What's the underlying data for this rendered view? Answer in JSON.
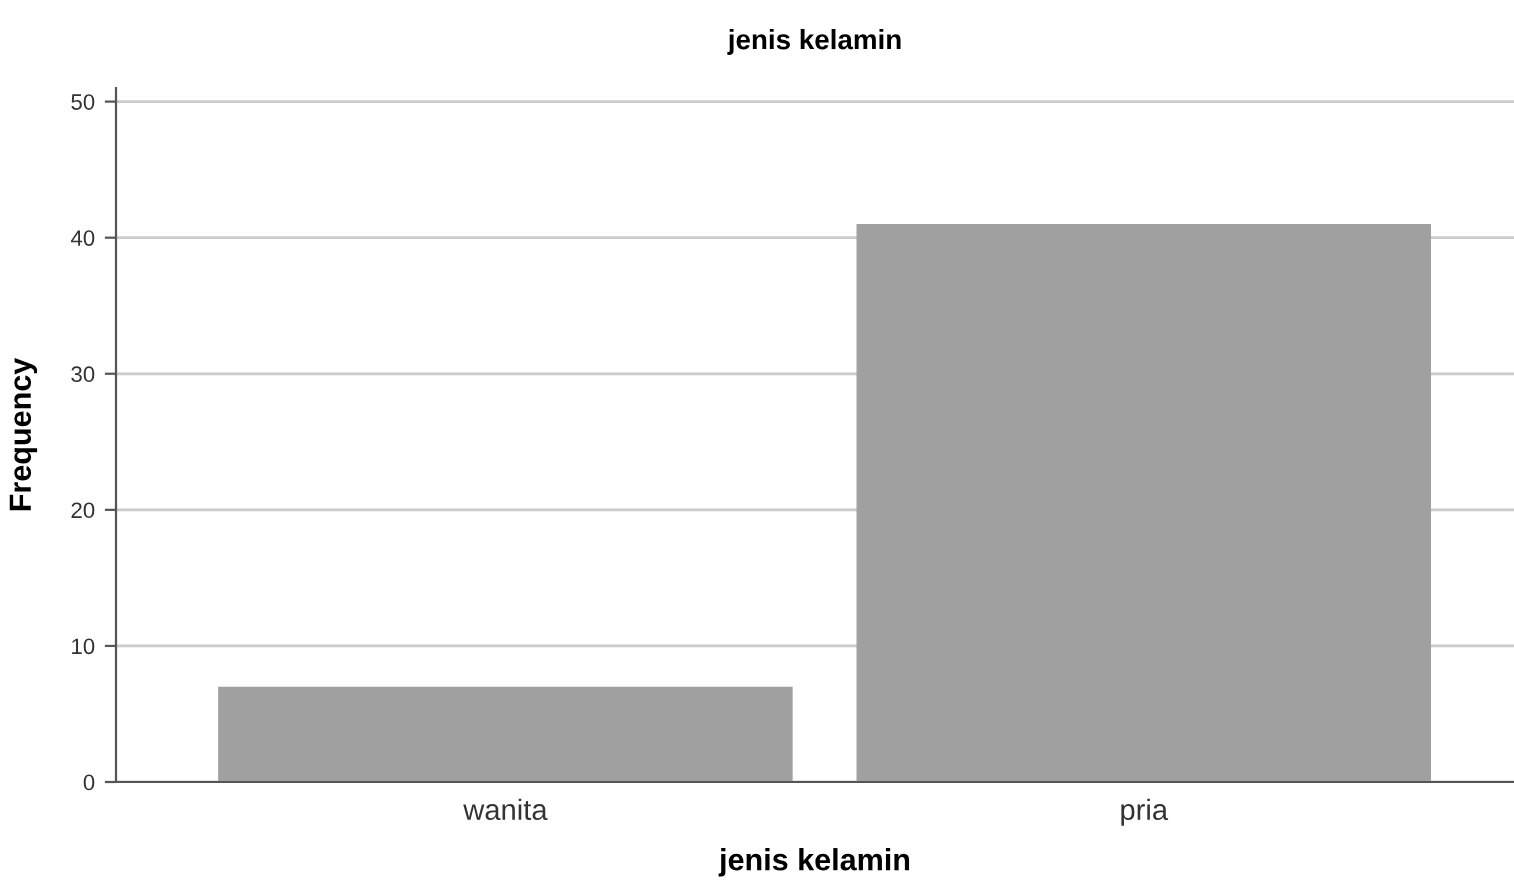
{
  "chart_data": {
    "type": "bar",
    "title": "jenis kelamin",
    "xlabel": "jenis kelamin",
    "ylabel": "Frequency",
    "categories": [
      "wanita",
      "pria"
    ],
    "values": [
      7,
      41
    ],
    "color": "#a0a0a0",
    "ylim": [
      0,
      51
    ],
    "yticks": [
      0,
      10,
      20,
      30,
      40,
      50
    ],
    "grid": "y"
  }
}
